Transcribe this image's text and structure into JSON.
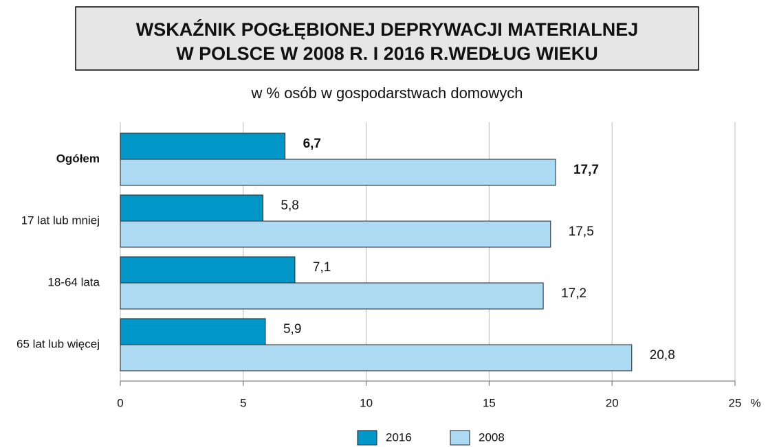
{
  "chart_data": {
    "type": "hbar",
    "title": [
      "WSKAŹNIK POGŁĘBIONEJ DEPRYWACJI MATERIALNEJ",
      "W POLSCE W 2008 R. I 2016 R.WEDŁUG WIEKU"
    ],
    "subtitle": "w % osób w gospodarstwach domowych",
    "xlabel": "%",
    "categories": [
      "Ogółem",
      "17 lat lub mniej",
      "18-64 lata",
      "65 lat lub więcej"
    ],
    "series": [
      {
        "name": "2016",
        "color": "#0096c8",
        "values": [
          6.7,
          5.8,
          7.1,
          5.9
        ],
        "value_labels": [
          "6,7",
          "5,8",
          "7,1",
          "5,9"
        ]
      },
      {
        "name": "2008",
        "color": "#acdaf2",
        "values": [
          17.7,
          17.5,
          17.2,
          20.8
        ],
        "value_labels": [
          "17,7",
          "17,5",
          "17,2",
          "20,8"
        ]
      }
    ],
    "xlim": [
      0,
      25
    ],
    "xticks": [
      0,
      5,
      10,
      15,
      20,
      25
    ],
    "grid": true
  }
}
